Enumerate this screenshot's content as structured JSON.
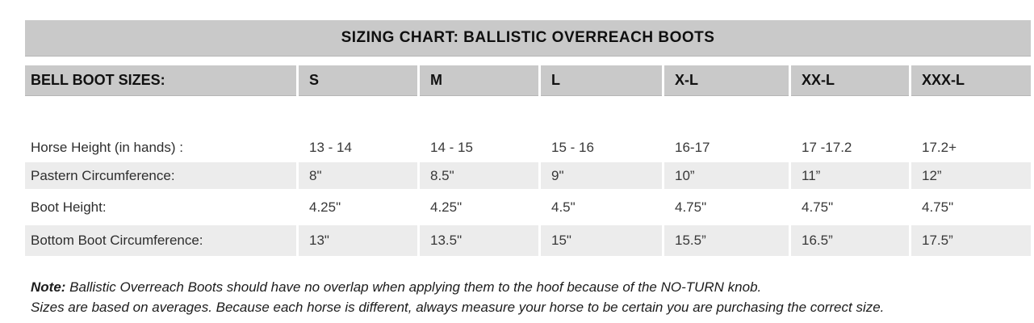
{
  "title": "SIZING CHART: BALLISTIC OVERREACH BOOTS",
  "table": {
    "header_label": "BELL BOOT SIZES:",
    "columns": [
      "S",
      "M",
      "L",
      "X-L",
      "XX-L",
      "XXX-L"
    ],
    "rows": [
      {
        "label": "Horse Height (in hands) :",
        "values": [
          "13 - 14",
          "14 - 15",
          "15 - 16",
          "16-17",
          "17 -17.2",
          "17.2+"
        ]
      },
      {
        "label": "Pastern Circumference:",
        "values": [
          "8\"",
          "8.5\"",
          "9\"",
          "10”",
          "11”",
          "12”"
        ]
      },
      {
        "label": "Boot Height:",
        "values": [
          "4.25\"",
          "4.25\"",
          "4.5\"",
          "4.75\"",
          "4.75\"",
          "4.75\""
        ]
      },
      {
        "label": "Bottom Boot Circumference:",
        "values": [
          "13\"",
          "13.5\"",
          "15\"",
          "15.5”",
          "16.5”",
          "17.5”"
        ]
      }
    ]
  },
  "note": {
    "label": "Note:",
    "line1": " Ballistic Overreach Boots should have no overlap when applying them to the hoof because of the NO-TURN knob.",
    "line2": "Sizes are based on averages. Because each horse is different, always measure your horse to be certain you are purchasing the correct size."
  },
  "colors": {
    "bar_gray": "#c9c9c9",
    "stripe_gray": "#ececec",
    "background": "#ffffff"
  }
}
